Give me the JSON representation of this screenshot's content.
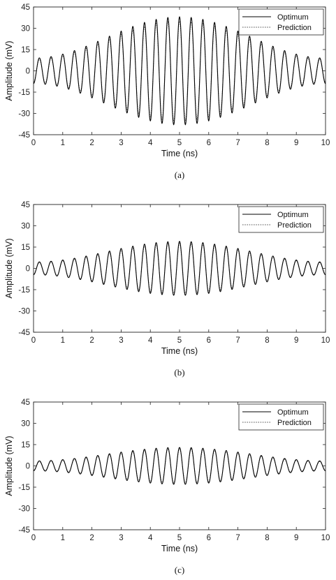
{
  "chart_data": [
    {
      "type": "line",
      "caption": "(a)",
      "xlabel": "Time (ns)",
      "ylabel": "Amplitude (mV)",
      "xlim": [
        0,
        10
      ],
      "ylim": [
        -45,
        45
      ],
      "xticks": [
        "0",
        "1",
        "2",
        "3",
        "4",
        "5",
        "6",
        "7",
        "8",
        "9",
        "10"
      ],
      "yticks": [
        "45",
        "30",
        "15",
        "0",
        "-15",
        "-30",
        "-45"
      ],
      "legend_position": "top-right",
      "grid": false,
      "frequency_ghz": 2.5,
      "series": [
        {
          "name": "Optimum",
          "style": "solid",
          "color": "#000000",
          "envelope_min_mv": 9,
          "envelope_peak_mv": 38,
          "peak_time_ns": 5
        },
        {
          "name": "Prediction",
          "style": "dotted",
          "color": "#555555",
          "envelope_min_mv": 8,
          "envelope_peak_mv": 35,
          "peak_time_ns": 5
        }
      ]
    },
    {
      "type": "line",
      "caption": "(b)",
      "xlabel": "Time (ns)",
      "ylabel": "Amplitude (mV)",
      "xlim": [
        0,
        10
      ],
      "ylim": [
        -45,
        45
      ],
      "xticks": [
        "0",
        "1",
        "2",
        "3",
        "4",
        "5",
        "6",
        "7",
        "8",
        "9",
        "10"
      ],
      "yticks": [
        "45",
        "30",
        "15",
        "0",
        "-15",
        "-30",
        "-45"
      ],
      "legend_position": "top-right",
      "grid": false,
      "frequency_ghz": 2.5,
      "series": [
        {
          "name": "Optimum",
          "style": "solid",
          "color": "#000000",
          "envelope_min_mv": 4.5,
          "envelope_peak_mv": 19,
          "peak_time_ns": 5
        },
        {
          "name": "Prediction",
          "style": "dotted",
          "color": "#555555",
          "envelope_min_mv": 4,
          "envelope_peak_mv": 17.5,
          "peak_time_ns": 5
        }
      ]
    },
    {
      "type": "line",
      "caption": "(c)",
      "xlabel": "Time (ns)",
      "ylabel": "Amplitude (mV)",
      "xlim": [
        0,
        10
      ],
      "ylim": [
        -45,
        45
      ],
      "xticks": [
        "0",
        "1",
        "2",
        "3",
        "4",
        "5",
        "6",
        "7",
        "8",
        "9",
        "10"
      ],
      "yticks": [
        "45",
        "30",
        "15",
        "0",
        "-15",
        "-30",
        "-45"
      ],
      "legend_position": "top-right",
      "grid": false,
      "frequency_ghz": 2.5,
      "series": [
        {
          "name": "Optimum",
          "style": "solid",
          "color": "#000000",
          "envelope_min_mv": 3.5,
          "envelope_peak_mv": 13,
          "peak_time_ns": 5
        },
        {
          "name": "Prediction",
          "style": "dotted",
          "color": "#555555",
          "envelope_min_mv": 3,
          "envelope_peak_mv": 12,
          "peak_time_ns": 5
        }
      ]
    }
  ]
}
